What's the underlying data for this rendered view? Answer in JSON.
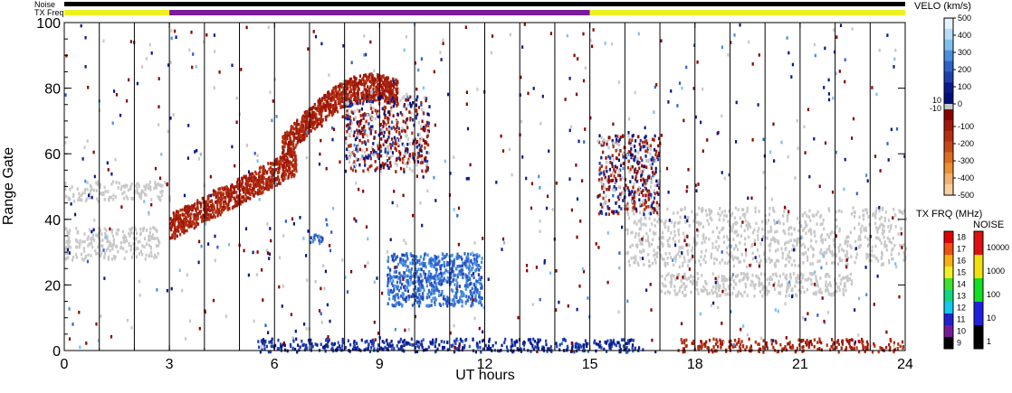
{
  "chart_data": {
    "type": "heatmap",
    "title": "",
    "xlabel": "UT hours",
    "ylabel": "Range Gate",
    "xlim": [
      0,
      24
    ],
    "ylim": [
      0,
      100
    ],
    "x_ticks": [
      "0",
      "3",
      "6",
      "9",
      "12",
      "15",
      "18",
      "21",
      "24"
    ],
    "y_ticks": [
      "0",
      "20",
      "40",
      "60",
      "80",
      "100"
    ],
    "grid": "vertical lines every 1 UT hour",
    "noise_bar_label": "Noise",
    "txfreq_bar_label": "TX Freq",
    "noise_bar_level": "low (near 1) for the whole day",
    "tx_freq_segments": [
      {
        "start": 0,
        "end": 3,
        "freq_mhz": 15
      },
      {
        "start": 3,
        "end": 15,
        "freq_mhz": 10
      },
      {
        "start": 15,
        "end": 24,
        "freq_mhz": 15
      }
    ],
    "velocity_colorbar": {
      "title": "VELO (km/s)",
      "ticks": [
        "500",
        "400",
        "300",
        "200",
        "100",
        "0",
        "-100",
        "-200",
        "-300",
        "-400",
        "-500"
      ],
      "center_labels": [
        "10",
        "-10"
      ],
      "range": [
        -500,
        500
      ],
      "colors": {
        "positive": [
          "#e6f2fc",
          "#b8dcf6",
          "#7ec0ee",
          "#4a8fe0",
          "#2d62cc",
          "#1f3fb0",
          "#0a1a8c",
          "#000f78"
        ],
        "ground_scatter": "#c8c8c8",
        "negative": [
          "#8a0000",
          "#a01808",
          "#b43010",
          "#c84818",
          "#dc6e20",
          "#ec9030",
          "#f4b070",
          "#f8d0a0"
        ]
      }
    },
    "tx_freq_colorbar": {
      "title": "TX FRQ (MHz)",
      "ticks": [
        "18",
        "17",
        "16",
        "15",
        "14",
        "13",
        "12",
        "11",
        "10",
        "9"
      ],
      "colors": [
        "#000000",
        "#7a1a9a",
        "#2020d0",
        "#10c8f0",
        "#10d880",
        "#40e030",
        "#f0f020",
        "#f8b010",
        "#f05010",
        "#e00000"
      ]
    },
    "noise_colorbar": {
      "title": "NOISE",
      "ticks": [
        "10000",
        "1000",
        "100",
        "10",
        "1"
      ],
      "colors": [
        "#000000",
        "#2020e0",
        "#10e020",
        "#f0e010",
        "#e01010"
      ]
    },
    "echo_regions": [
      {
        "label": "ground scatter band",
        "x": [
          0.0,
          3.0
        ],
        "y": [
          46,
          52
        ],
        "velocity": "ground"
      },
      {
        "label": "ground scatter band",
        "x": [
          0.0,
          2.7
        ],
        "y": [
          28,
          38
        ],
        "velocity": "ground"
      },
      {
        "label": "negative-velocity arc",
        "x": [
          3.0,
          6.6
        ],
        "y": [
          36,
          60
        ],
        "velocity": -100
      },
      {
        "label": "arc continuation",
        "x": [
          6.2,
          9.5
        ],
        "y": [
          60,
          88
        ],
        "velocity": -100
      },
      {
        "label": "mixed echoes",
        "x": [
          8.0,
          10.4
        ],
        "y": [
          55,
          78
        ],
        "velocity": "mixed"
      },
      {
        "label": "positive-velocity patch",
        "x": [
          9.2,
          11.9
        ],
        "y": [
          14,
          30
        ],
        "velocity": 200
      },
      {
        "label": "small positive patch",
        "x": [
          7.0,
          7.4
        ],
        "y": [
          33,
          36
        ],
        "velocity": 200
      },
      {
        "label": "near-range positive band",
        "x": [
          5.5,
          16.5
        ],
        "y": [
          0,
          4
        ],
        "velocity": 100
      },
      {
        "label": "near-range negative band",
        "x": [
          17.5,
          24.0
        ],
        "y": [
          0,
          4
        ],
        "velocity": -100
      },
      {
        "label": "afternoon ground scatter",
        "x": [
          16.0,
          24.0
        ],
        "y": [
          26,
          44
        ],
        "velocity": "ground"
      },
      {
        "label": "afternoon ground scatter",
        "x": [
          17.0,
          22.5
        ],
        "y": [
          17,
          24
        ],
        "velocity": "ground"
      },
      {
        "label": "afternoon echoes",
        "x": [
          15.2,
          17.0
        ],
        "y": [
          42,
          66
        ],
        "velocity": "mixed"
      }
    ]
  }
}
